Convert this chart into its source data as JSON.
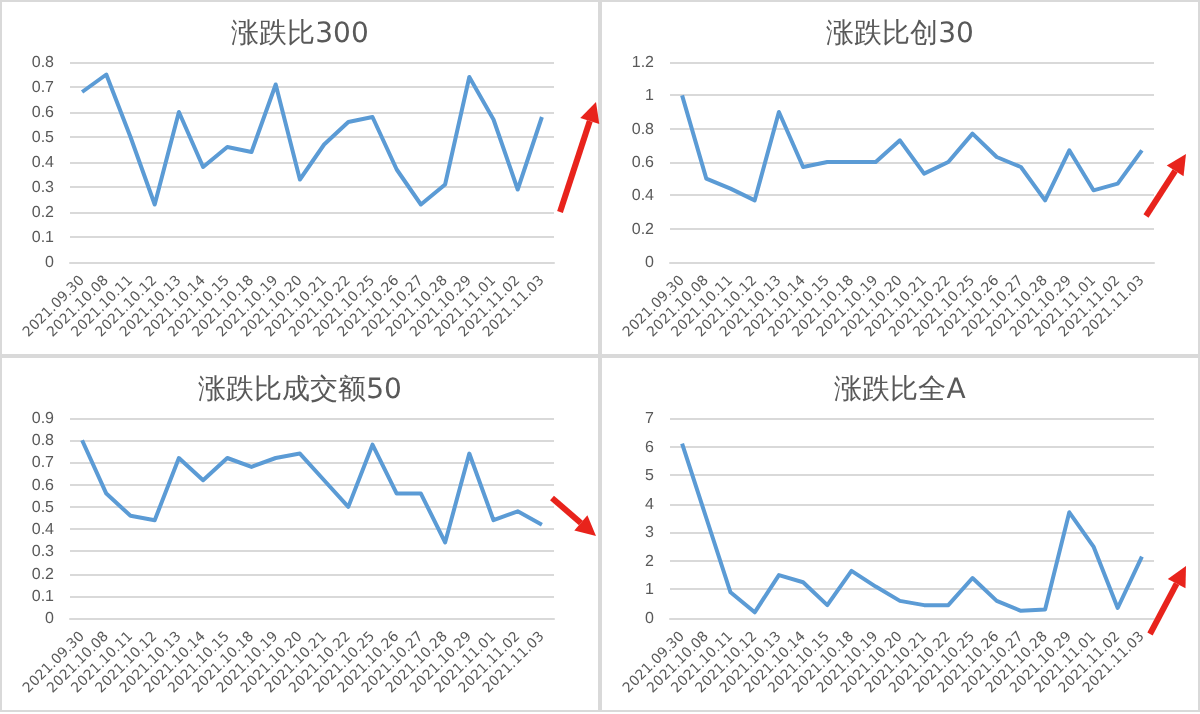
{
  "chart_data": [
    {
      "type": "line",
      "title": "涨跌比300",
      "categories": [
        "2021.09.30",
        "2021.10.08",
        "2021.10.11",
        "2021.10.12",
        "2021.10.13",
        "2021.10.14",
        "2021.10.15",
        "2021.10.18",
        "2021.10.19",
        "2021.10.20",
        "2021.10.21",
        "2021.10.22",
        "2021.10.25",
        "2021.10.26",
        "2021.10.27",
        "2021.10.28",
        "2021.10.29",
        "2021.11.01",
        "2021.11.02",
        "2021.11.03"
      ],
      "values": [
        0.68,
        0.75,
        0.5,
        0.23,
        0.6,
        0.38,
        0.46,
        0.44,
        0.71,
        0.33,
        0.47,
        0.56,
        0.58,
        0.37,
        0.23,
        0.31,
        0.74,
        0.57,
        0.29,
        0.58
      ],
      "color": "#5b9bd5",
      "ylim": [
        0,
        0.8
      ],
      "yticks": [
        0,
        0.1,
        0.2,
        0.3,
        0.4,
        0.5,
        0.6,
        0.7,
        0.8
      ],
      "grid": "y"
    },
    {
      "type": "line",
      "title": "涨跌比创30",
      "categories": [
        "2021.09.30",
        "2021.10.08",
        "2021.10.11",
        "2021.10.12",
        "2021.10.13",
        "2021.10.14",
        "2021.10.15",
        "2021.10.18",
        "2021.10.19",
        "2021.10.20",
        "2021.10.21",
        "2021.10.22",
        "2021.10.25",
        "2021.10.26",
        "2021.10.27",
        "2021.10.28",
        "2021.10.29",
        "2021.11.01",
        "2021.11.02",
        "2021.11.03"
      ],
      "values": [
        1.0,
        0.5,
        0.44,
        0.37,
        0.9,
        0.57,
        0.6,
        0.6,
        0.6,
        0.73,
        0.53,
        0.6,
        0.77,
        0.63,
        0.57,
        0.37,
        0.67,
        0.43,
        0.47,
        0.67
      ],
      "color": "#5b9bd5",
      "ylim": [
        0,
        1.2
      ],
      "yticks": [
        0,
        0.2,
        0.4,
        0.6,
        0.8,
        1,
        1.2
      ],
      "grid": "y"
    },
    {
      "type": "line",
      "title": "涨跌比成交额50",
      "categories": [
        "2021.09.30",
        "2021.10.08",
        "2021.10.11",
        "2021.10.12",
        "2021.10.13",
        "2021.10.14",
        "2021.10.15",
        "2021.10.18",
        "2021.10.19",
        "2021.10.20",
        "2021.10.21",
        "2021.10.22",
        "2021.10.25",
        "2021.10.26",
        "2021.10.27",
        "2021.10.28",
        "2021.10.29",
        "2021.11.01",
        "2021.11.02",
        "2021.11.03"
      ],
      "values": [
        0.8,
        0.56,
        0.46,
        0.44,
        0.72,
        0.62,
        0.72,
        0.68,
        0.72,
        0.74,
        0.62,
        0.5,
        0.78,
        0.56,
        0.56,
        0.34,
        0.74,
        0.44,
        0.48,
        0.42
      ],
      "color": "#5b9bd5",
      "ylim": [
        0,
        0.9
      ],
      "yticks": [
        0,
        0.1,
        0.2,
        0.3,
        0.4,
        0.5,
        0.6,
        0.7,
        0.8,
        0.9
      ],
      "grid": "y"
    },
    {
      "type": "line",
      "title": "涨跌比全A",
      "categories": [
        "2021.09.30",
        "2021.10.08",
        "2021.10.11",
        "2021.10.12",
        "2021.10.13",
        "2021.10.14",
        "2021.10.15",
        "2021.10.18",
        "2021.10.19",
        "2021.10.20",
        "2021.10.21",
        "2021.10.22",
        "2021.10.25",
        "2021.10.26",
        "2021.10.27",
        "2021.10.28",
        "2021.10.29",
        "2021.11.01",
        "2021.11.02",
        "2021.11.03"
      ],
      "values": [
        6.1,
        3.5,
        0.9,
        0.2,
        1.5,
        1.25,
        0.45,
        1.65,
        1.1,
        0.6,
        0.45,
        0.45,
        1.4,
        0.6,
        0.25,
        0.3,
        3.7,
        2.5,
        0.35,
        2.15
      ],
      "color": "#5b9bd5",
      "ylim": [
        0,
        7
      ],
      "yticks": [
        0,
        1,
        2,
        3,
        4,
        5,
        6,
        7
      ],
      "grid": "y"
    }
  ]
}
